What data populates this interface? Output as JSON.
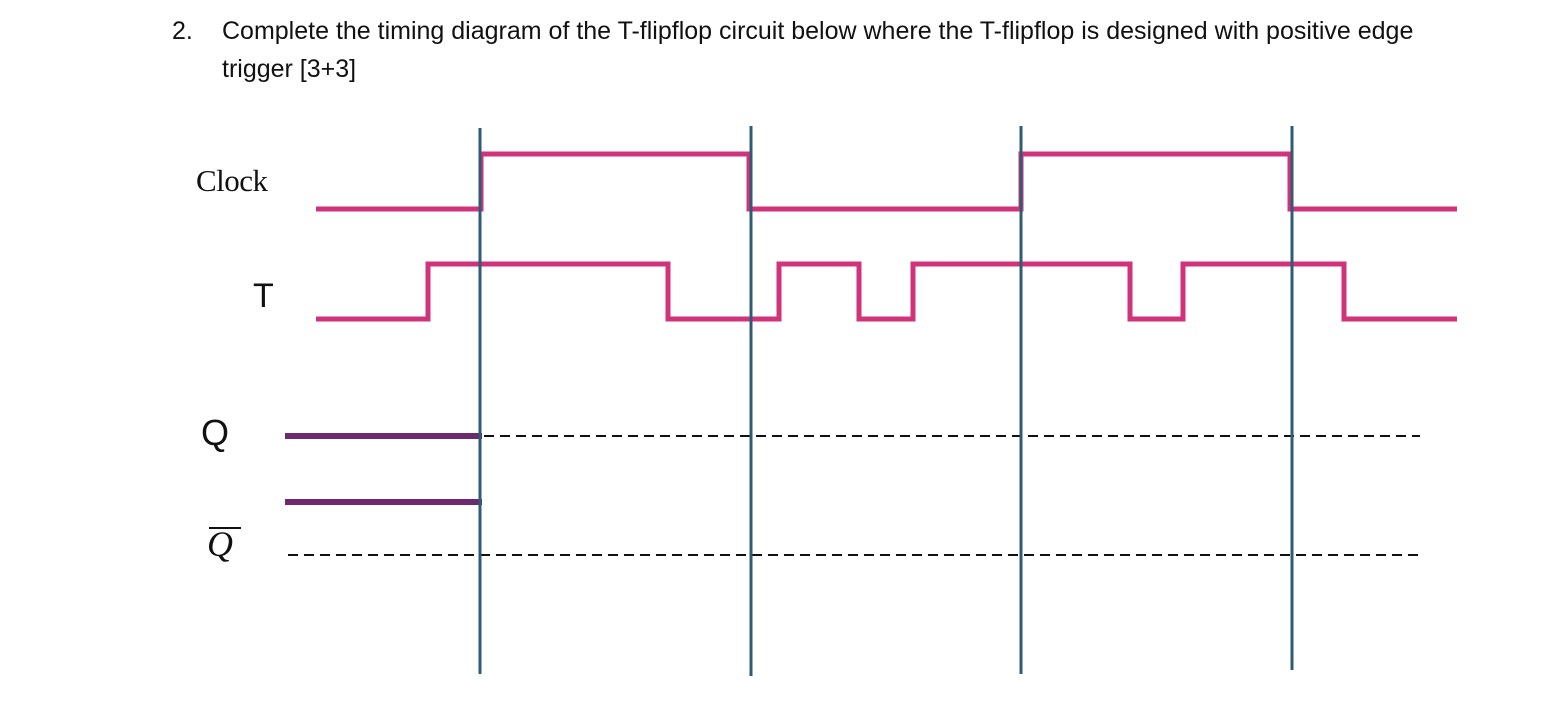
{
  "question": {
    "number": "2.",
    "text": "Complete the timing diagram of the T-flipflop circuit below where the T-flipflop is designed with positive edge trigger [3+3]"
  },
  "labels": {
    "clock": "Clock",
    "t": "T",
    "q": "Q",
    "q_bar": "Q"
  },
  "colors": {
    "input_signal": "#d0337a",
    "output_signal": "#6e2a6e",
    "edge_marker": "#2f5b75",
    "guide_dash": "#111111"
  },
  "signals": {
    "clock": [
      0,
      1,
      0,
      1,
      0
    ],
    "t": [
      0,
      1,
      0,
      1,
      0,
      1,
      0,
      1,
      0
    ],
    "q_given": 1,
    "q_bar_given": 0
  }
}
